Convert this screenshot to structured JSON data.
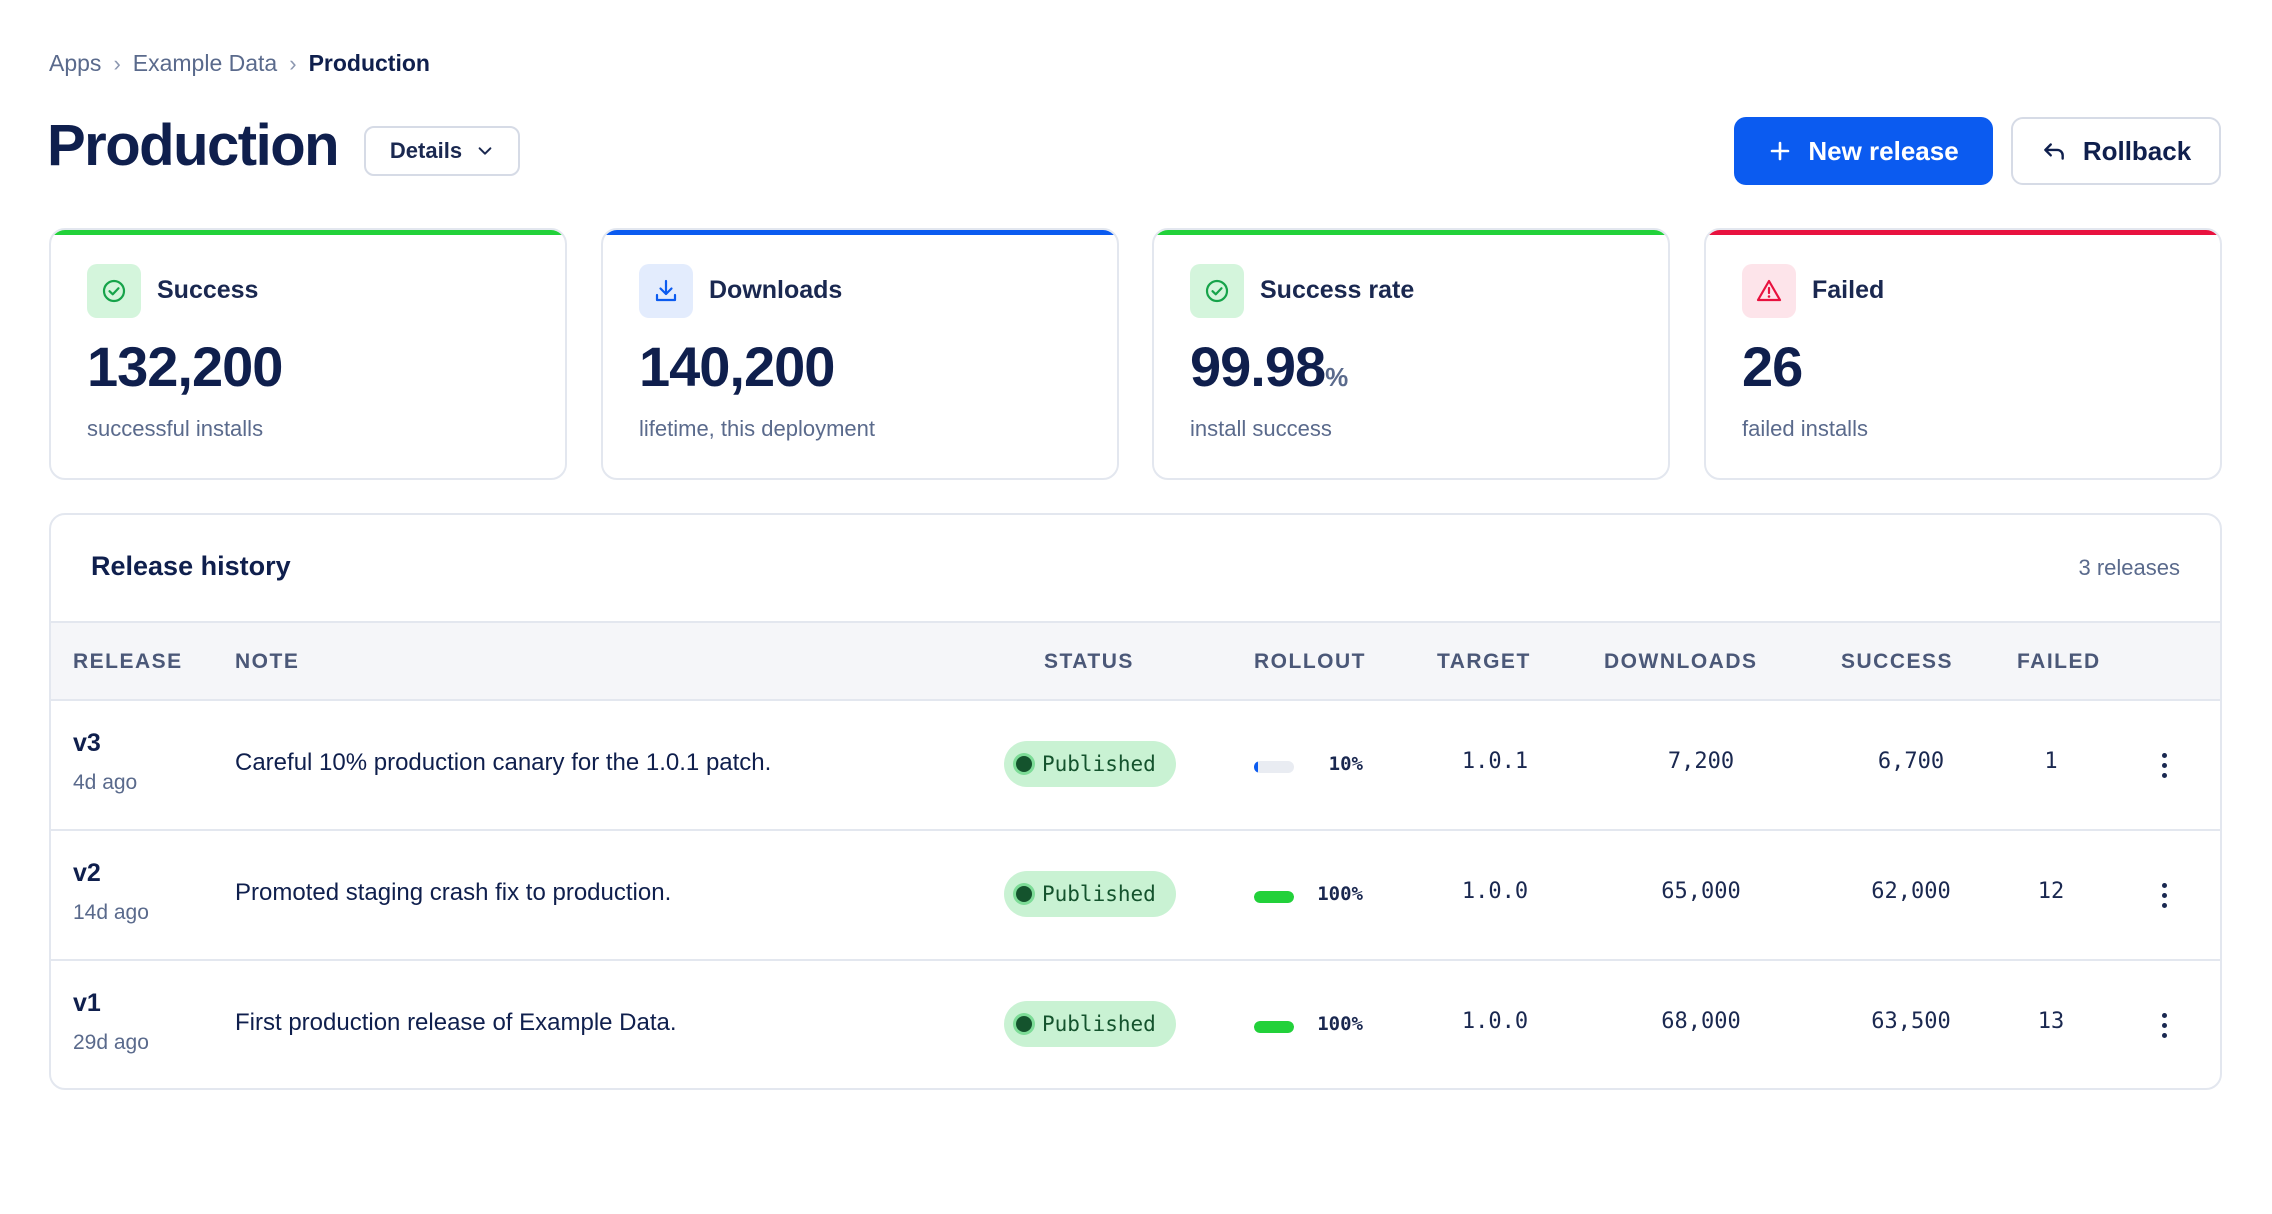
{
  "breadcrumb": {
    "items": [
      "Apps",
      "Example Data"
    ],
    "current": "Production",
    "separator": "›"
  },
  "header": {
    "title": "Production",
    "details_label": "Details",
    "new_release_label": "New release",
    "rollback_label": "Rollback"
  },
  "stats": [
    {
      "label": "Success",
      "value": "132,200",
      "unit": "",
      "sub": "successful installs",
      "accent": "#22d13a",
      "icon": "check-circle-icon"
    },
    {
      "label": "Downloads",
      "value": "140,200",
      "unit": "",
      "sub": "lifetime, this deployment",
      "accent": "#0b5bf0",
      "icon": "download-icon"
    },
    {
      "label": "Success rate",
      "value": "99.98",
      "unit": "%",
      "sub": "install success",
      "accent": "#22d13a",
      "icon": "check-circle-icon"
    },
    {
      "label": "Failed",
      "value": "26",
      "unit": "",
      "sub": "failed installs",
      "accent": "#e8123f",
      "icon": "warning-triangle-icon"
    }
  ],
  "release_history": {
    "title": "Release history",
    "count_label": "3 releases",
    "columns": [
      "RELEASE",
      "NOTE",
      "STATUS",
      "ROLLOUT",
      "TARGET",
      "DOWNLOADS",
      "SUCCESS",
      "FAILED"
    ],
    "rows": [
      {
        "version": "v3",
        "age": "4d ago",
        "note": "Careful 10% production canary for the 1.0.1 patch.",
        "status": "Published",
        "rollout_pct": "10%",
        "rollout_fraction": 0.1,
        "target": "1.0.1",
        "downloads": "7,200",
        "success": "6,700",
        "failed": "1"
      },
      {
        "version": "v2",
        "age": "14d ago",
        "note": "Promoted staging crash fix to production.",
        "status": "Published",
        "rollout_pct": "100%",
        "rollout_fraction": 1.0,
        "target": "1.0.0",
        "downloads": "65,000",
        "success": "62,000",
        "failed": "12"
      },
      {
        "version": "v1",
        "age": "29d ago",
        "note": "First production release of Example Data.",
        "status": "Published",
        "rollout_pct": "100%",
        "rollout_fraction": 1.0,
        "target": "1.0.0",
        "downloads": "68,000",
        "success": "63,500",
        "failed": "13"
      }
    ]
  },
  "colors": {
    "primary": "#0b5bf0",
    "success": "#22d13a",
    "danger": "#e8123f",
    "text": "#0f1f4d",
    "muted": "#5a6a8c"
  }
}
